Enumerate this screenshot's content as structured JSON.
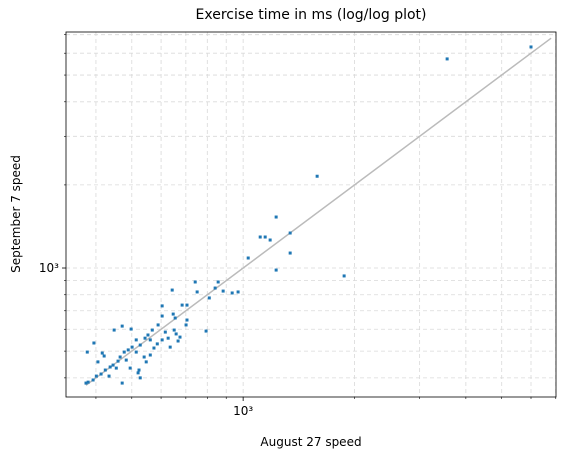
{
  "chart_data": {
    "type": "scatter",
    "title": "Exercise time in ms (log/log plot)",
    "x_label": "August 27 speed",
    "y_label": "September 7 speed",
    "xscale": "log",
    "yscale": "log",
    "grid": true,
    "xlim": [
      332,
      7010
    ],
    "ylim": [
      341,
      7160
    ],
    "xticks": [
      {
        "value": 1000,
        "label": "10³"
      }
    ],
    "yticks": [
      {
        "value": 1000,
        "label": "10³"
      }
    ],
    "xminor": [
      400,
      500,
      600,
      700,
      800,
      900,
      2000,
      3000,
      4000,
      5000,
      6000,
      7000
    ],
    "yminor": [
      400,
      500,
      600,
      700,
      800,
      900,
      2000,
      3000,
      4000,
      5000,
      6000,
      7000
    ],
    "color": "#1f77b4",
    "reference_line": {
      "x": [
        376,
        6800
      ],
      "y": [
        376,
        6800
      ],
      "color": "#bbbbbb"
    },
    "x": [
      3560,
      6000,
      1585,
      1875,
      1228,
      1340,
      1340,
      1228,
      1112,
      1147,
      1183,
      1032,
      969,
      934,
      883,
      840,
      856,
      810,
      794,
      742,
      751,
      684,
      643,
      655,
      604,
      604,
      651,
      627,
      667,
      635,
      616,
      589,
      568,
      553,
      543,
      527,
      514,
      501,
      489,
      477,
      465,
      459,
      445,
      437,
      424,
      413,
      401,
      393,
      381,
      376,
      395,
      379,
      416,
      471,
      448,
      498,
      483,
      471,
      434,
      520,
      523,
      495,
      454,
      574,
      561,
      540,
      547,
      514,
      604,
      586,
      561,
      701,
      675,
      705,
      705,
      647,
      659,
      527,
      421,
      405
    ],
    "y": [
      5720,
      6320,
      2150,
      936,
      1530,
      1339,
      1133,
      983,
      1295,
      1295,
      1263,
      1087,
      819,
      812,
      825,
      846,
      890,
      779,
      591,
      890,
      819,
      734,
      832,
      659,
      729,
      670,
      596,
      557,
      544,
      517,
      586,
      622,
      596,
      572,
      557,
      526,
      549,
      517,
      505,
      496,
      476,
      460,
      445,
      438,
      427,
      413,
      406,
      393,
      386,
      383,
      535,
      496,
      492,
      616,
      596,
      601,
      464,
      383,
      406,
      417,
      427,
      434,
      434,
      513,
      484,
      476,
      457,
      496,
      549,
      531,
      549,
      622,
      562,
      648,
      734,
      681,
      577,
      400,
      480,
      457
    ]
  }
}
